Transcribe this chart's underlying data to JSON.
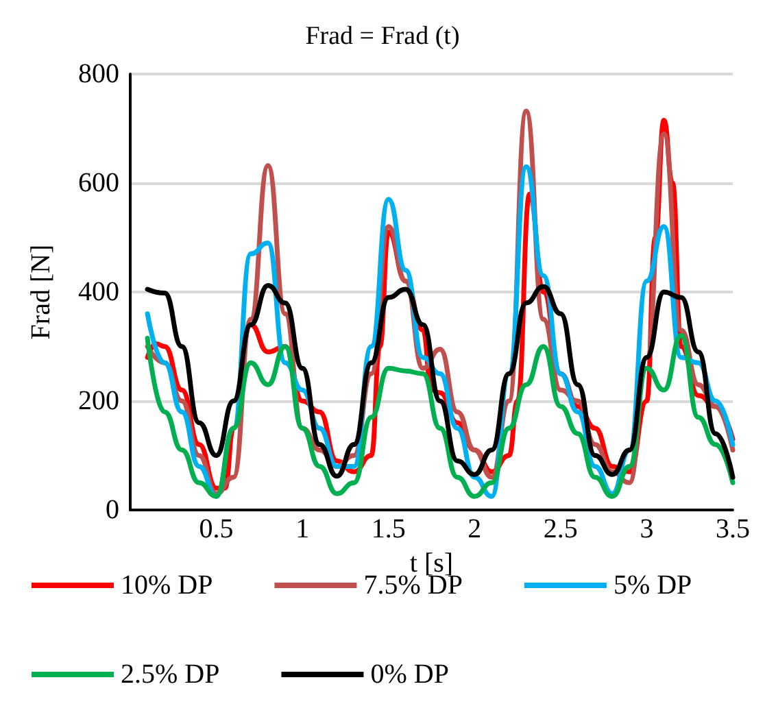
{
  "chart_data": {
    "type": "line",
    "title": "Frad = Frad (t)",
    "xlabel": "t [s]",
    "ylabel": "Frad [N]",
    "xlim": [
      0,
      3.5
    ],
    "xticks": [
      0.5,
      1,
      1.5,
      2,
      2.5,
      3,
      3.5
    ],
    "ylim": [
      0,
      800
    ],
    "yticks": [
      0,
      200,
      400,
      600,
      800
    ],
    "grid": "y",
    "legend": "bottom",
    "marker": "none",
    "line_style": "solid",
    "series": [
      {
        "name": "10% DP",
        "color": "#ff0000",
        "x": [
          0.1,
          0.15,
          0.2,
          0.3,
          0.4,
          0.5,
          0.55,
          0.6,
          0.7,
          0.8,
          0.9,
          1.0,
          1.1,
          1.2,
          1.3,
          1.4,
          1.45,
          1.5,
          1.6,
          1.7,
          1.75,
          1.8,
          1.9,
          2.0,
          2.1,
          2.2,
          2.25,
          2.32,
          2.4,
          2.5,
          2.6,
          2.7,
          2.8,
          2.9,
          3.0,
          3.05,
          3.1,
          3.15,
          3.2,
          3.3,
          3.4,
          3.5
        ],
        "values": [
          280,
          305,
          300,
          220,
          120,
          40,
          40,
          150,
          340,
          290,
          300,
          200,
          180,
          90,
          70,
          100,
          300,
          510,
          420,
          330,
          220,
          215,
          160,
          110,
          70,
          100,
          200,
          580,
          400,
          250,
          190,
          150,
          80,
          70,
          200,
          500,
          715,
          600,
          300,
          210,
          190,
          130
        ]
      },
      {
        "name": "7.5% DP",
        "color": "#c0504d",
        "x": [
          0.1,
          0.2,
          0.3,
          0.4,
          0.5,
          0.6,
          0.7,
          0.8,
          0.9,
          1.0,
          1.1,
          1.2,
          1.3,
          1.4,
          1.5,
          1.6,
          1.7,
          1.8,
          1.9,
          2.0,
          2.1,
          2.2,
          2.3,
          2.4,
          2.5,
          2.6,
          2.7,
          2.8,
          2.9,
          3.0,
          3.1,
          3.2,
          3.3,
          3.4,
          3.5
        ],
        "values": [
          300,
          270,
          200,
          100,
          30,
          60,
          350,
          632,
          360,
          150,
          110,
          80,
          100,
          250,
          520,
          420,
          260,
          295,
          180,
          110,
          60,
          200,
          732,
          350,
          220,
          200,
          120,
          70,
          50,
          280,
          690,
          330,
          230,
          190,
          110
        ]
      },
      {
        "name": "5% DP",
        "color": "#00b0f0",
        "x": [
          0.1,
          0.2,
          0.3,
          0.4,
          0.5,
          0.6,
          0.7,
          0.8,
          0.9,
          1.0,
          1.1,
          1.2,
          1.3,
          1.4,
          1.5,
          1.6,
          1.7,
          1.8,
          1.9,
          2.0,
          2.1,
          2.2,
          2.3,
          2.4,
          2.5,
          2.6,
          2.7,
          2.8,
          2.9,
          3.0,
          3.1,
          3.2,
          3.3,
          3.4,
          3.5
        ],
        "values": [
          360,
          270,
          180,
          80,
          25,
          150,
          470,
          490,
          270,
          220,
          150,
          80,
          80,
          300,
          570,
          440,
          280,
          250,
          150,
          60,
          25,
          250,
          630,
          430,
          250,
          180,
          80,
          30,
          110,
          420,
          520,
          280,
          270,
          200,
          120
        ]
      },
      {
        "name": "2.5% DP",
        "color": "#00b050",
        "x": [
          0.1,
          0.2,
          0.3,
          0.4,
          0.5,
          0.6,
          0.7,
          0.8,
          0.9,
          1.0,
          1.1,
          1.2,
          1.3,
          1.4,
          1.5,
          1.6,
          1.7,
          1.8,
          1.9,
          2.0,
          2.1,
          2.2,
          2.3,
          2.4,
          2.5,
          2.6,
          2.7,
          2.8,
          2.9,
          3.0,
          3.1,
          3.2,
          3.3,
          3.4,
          3.5
        ],
        "values": [
          315,
          180,
          110,
          50,
          25,
          150,
          270,
          230,
          300,
          150,
          80,
          30,
          50,
          170,
          260,
          255,
          250,
          150,
          60,
          25,
          50,
          150,
          230,
          300,
          190,
          140,
          60,
          25,
          80,
          260,
          220,
          320,
          170,
          120,
          50
        ]
      },
      {
        "name": "0% DP",
        "color": "#000000",
        "x": [
          0.1,
          0.2,
          0.3,
          0.4,
          0.5,
          0.6,
          0.7,
          0.8,
          0.9,
          1.0,
          1.1,
          1.2,
          1.3,
          1.4,
          1.5,
          1.6,
          1.7,
          1.8,
          1.9,
          2.0,
          2.1,
          2.2,
          2.3,
          2.4,
          2.5,
          2.6,
          2.7,
          2.8,
          2.9,
          3.0,
          3.1,
          3.2,
          3.3,
          3.4,
          3.5
        ],
        "values": [
          405,
          398,
          300,
          160,
          100,
          200,
          340,
          412,
          380,
          260,
          120,
          62,
          120,
          270,
          390,
          405,
          340,
          200,
          90,
          65,
          110,
          250,
          380,
          410,
          360,
          230,
          100,
          65,
          110,
          280,
          400,
          390,
          290,
          140,
          60
        ]
      }
    ]
  }
}
